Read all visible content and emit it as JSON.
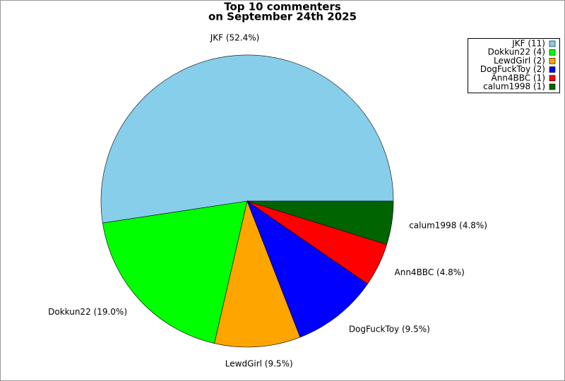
{
  "chart_data": {
    "type": "pie",
    "title": [
      "Top 10 commenters",
      "on September 24th 2025"
    ],
    "values": [
      52.4,
      19.0,
      9.5,
      9.5,
      4.8,
      4.8
    ],
    "value_labels": [
      "JKF (52.4%)",
      "Dokkun22 (19.0%)",
      "LewdGirl (9.5%)",
      "DogFuckToy (9.5%)",
      "Ann4BBC (4.8%)",
      "calum1998 (4.8%)"
    ],
    "legend_labels": [
      "JKF (11)",
      "Dokkun22 (4)",
      "LewdGirl (2)",
      "DogFuckToy (2)",
      "Ann4BBC (1)",
      "calum1998 (1)"
    ],
    "colors": [
      "#87ceeb",
      "#00ff00",
      "#ffa500",
      "#0000ff",
      "#ff0000",
      "#006400"
    ],
    "legend": "upper right"
  }
}
